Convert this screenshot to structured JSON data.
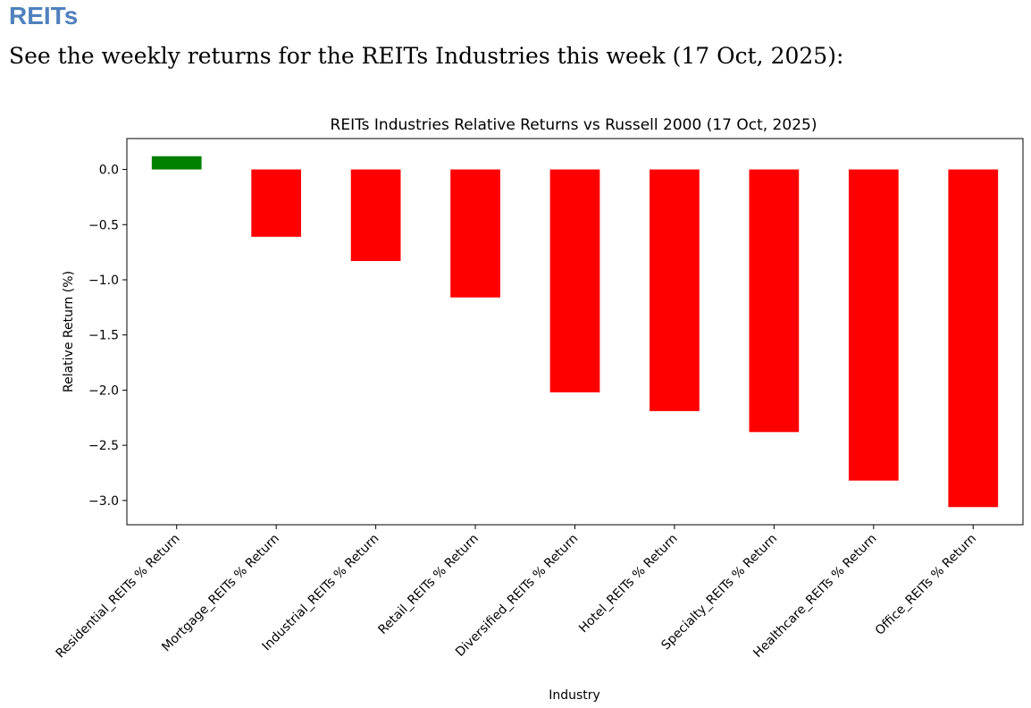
{
  "header": {
    "title": "REITs",
    "intro": "See the weekly returns for the REITs Industries this week (17 Oct, 2025):"
  },
  "chart_data": {
    "type": "bar",
    "title": "REITs Industries Relative Returns vs Russell 2000 (17 Oct, 2025)",
    "xlabel": "Industry",
    "ylabel": "Relative Return (%)",
    "categories": [
      "Residential_REITs % Return",
      "Mortgage_REITs % Return",
      "Industrial_REITs % Return",
      "Retail_REITs % Return",
      "Diversified_REITs % Return",
      "Hotel_REITs % Return",
      "Specialty_REITs % Return",
      "Healthcare_REITs % Return",
      "Office_REITs % Return"
    ],
    "values": [
      0.12,
      -0.61,
      -0.83,
      -1.16,
      -2.02,
      -2.19,
      -2.38,
      -2.82,
      -3.06
    ],
    "ylim": [
      -3.22,
      0.28
    ],
    "yticks": [
      0.0,
      -0.5,
      -1.0,
      -1.5,
      -2.0,
      -2.5,
      -3.0
    ],
    "ytick_labels": [
      "0.0",
      "−0.5",
      "−1.0",
      "−1.5",
      "−2.0",
      "−2.5",
      "−3.0"
    ],
    "colors": {
      "positive": "#008000",
      "negative": "#ff0000"
    },
    "grid": false,
    "legend": "none"
  }
}
